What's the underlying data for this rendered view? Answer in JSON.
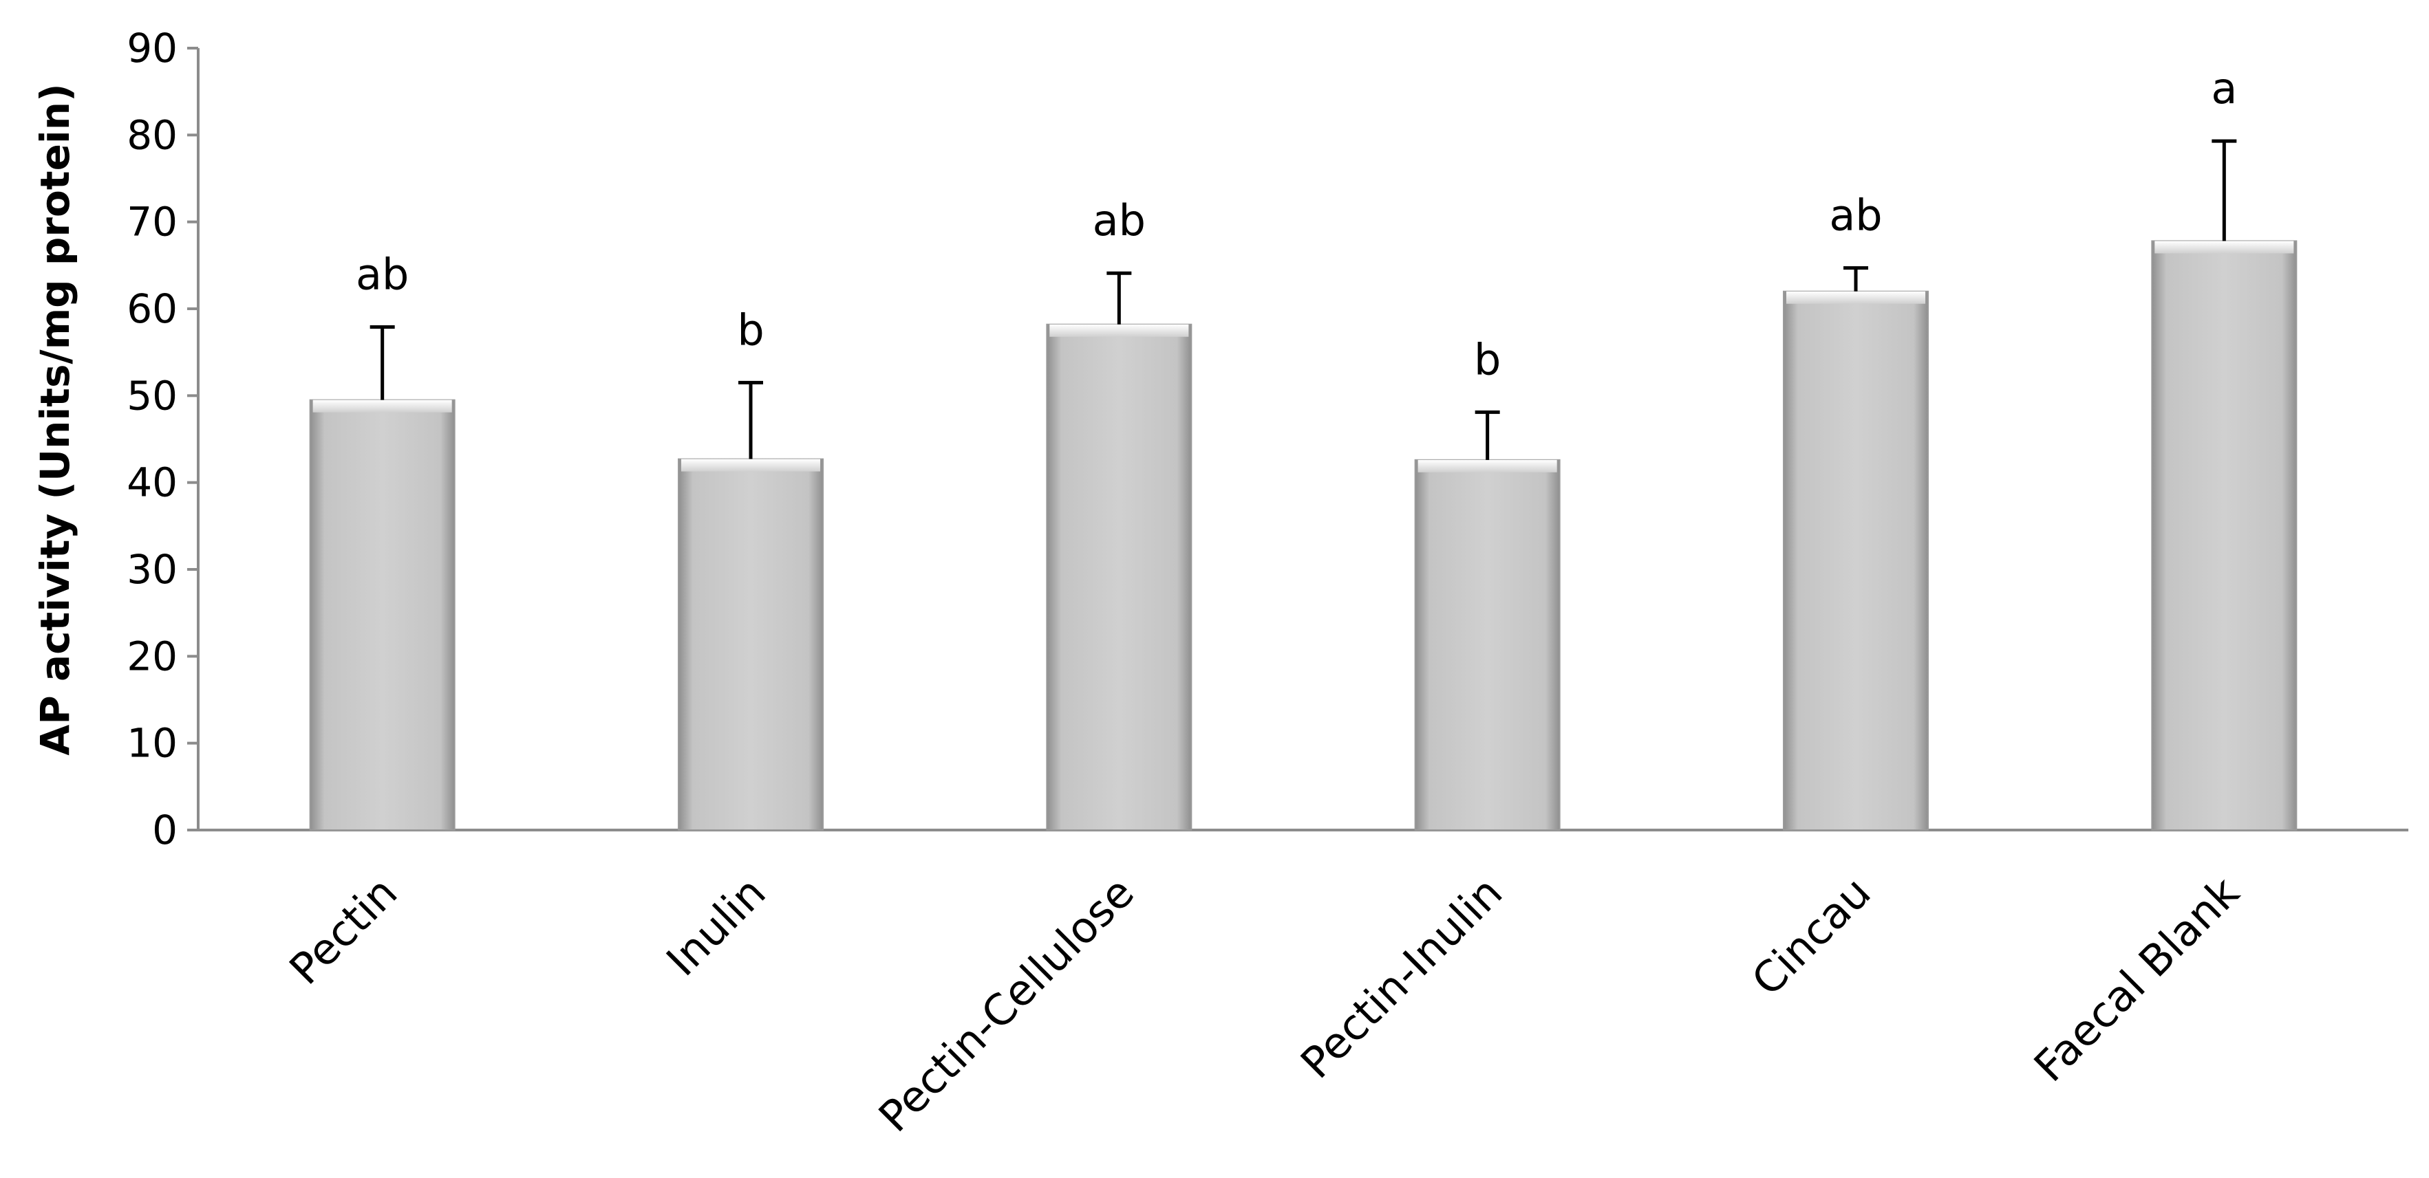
{
  "chart_data": {
    "type": "bar",
    "title": "",
    "xlabel": "",
    "ylabel": "AP activity (Units/mg protein)",
    "ylim": [
      0,
      90
    ],
    "yticks": [
      0,
      10,
      20,
      30,
      40,
      50,
      60,
      70,
      80,
      90
    ],
    "categories": [
      "Pectin",
      "Inulin",
      "Pectin-Cellulose",
      "Pectin-Inulin",
      "Cincau",
      "Faecal Blank"
    ],
    "values": [
      49.5,
      42.7,
      58.2,
      42.6,
      62.0,
      67.8
    ],
    "error_upper": [
      8.4,
      8.8,
      5.9,
      5.5,
      2.7,
      11.5
    ],
    "significance_labels": [
      "ab",
      "b",
      "ab",
      "b",
      "ab",
      "a"
    ],
    "grid": false,
    "legend": "none",
    "colors": {
      "bar_fill": "#c8c8c8",
      "bar_edge": "#9a9a9a",
      "axis": "#8c8c8c",
      "error_bar": "#000000"
    }
  }
}
